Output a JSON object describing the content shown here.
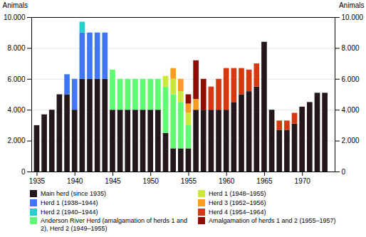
{
  "chart_data": {
    "type": "bar",
    "stacked": true,
    "x": [
      1935,
      1936,
      1937,
      1938,
      1939,
      1940,
      1941,
      1942,
      1943,
      1944,
      1945,
      1946,
      1947,
      1948,
      1949,
      1950,
      1951,
      1952,
      1953,
      1954,
      1955,
      1956,
      1957,
      1958,
      1959,
      1960,
      1961,
      1962,
      1963,
      1964,
      1965,
      1966,
      1967,
      1968,
      1969,
      1970,
      1971,
      1972,
      1973
    ],
    "xlim": [
      1934.3,
      1974.3
    ],
    "xticks": [
      1935,
      1940,
      1945,
      1950,
      1955,
      1960,
      1965,
      1970
    ],
    "ylim": [
      0,
      10000
    ],
    "yticks": [
      0,
      {
        "value": 2000,
        "label": "2.000"
      },
      {
        "value": 4000,
        "label": "4.000"
      },
      {
        "value": 6000,
        "label": "6.000"
      },
      {
        "value": 8000,
        "label": "8.000"
      },
      {
        "value": 10000,
        "label": "10.000"
      }
    ],
    "ylabel": "Animals",
    "y2label": "Animals",
    "grid": true,
    "legend": "bottom",
    "series": [
      {
        "name": "Main herd (since 1935)",
        "values": [
          3000,
          3700,
          4000,
          5000,
          5000,
          4000,
          6000,
          6000,
          6000,
          6000,
          4000,
          4000,
          4000,
          4000,
          4000,
          4000,
          4000,
          2500,
          1500,
          1500,
          1500,
          4000,
          4000,
          4000,
          4000,
          4000,
          4500,
          5000,
          5200,
          5500,
          8400,
          4000,
          2700,
          2700,
          3100,
          4200,
          4500,
          5100,
          5100
        ]
      },
      {
        "name": "Herd 1 (1938–1944)",
        "values": [
          0,
          0,
          0,
          0,
          1300,
          2000,
          3000,
          3000,
          3000,
          3000,
          0,
          0,
          0,
          0,
          0,
          0,
          0,
          0,
          0,
          0,
          0,
          0,
          0,
          0,
          0,
          0,
          0,
          0,
          0,
          0,
          0,
          0,
          0,
          0,
          0,
          0,
          0,
          0,
          0
        ]
      },
      {
        "name": "Herd 2 (1940–1944)",
        "values": [
          0,
          0,
          0,
          0,
          0,
          0,
          700,
          0,
          0,
          0,
          0,
          0,
          0,
          0,
          0,
          0,
          0,
          0,
          0,
          0,
          0,
          0,
          0,
          0,
          0,
          0,
          0,
          0,
          0,
          0,
          0,
          0,
          0,
          0,
          0,
          0,
          0,
          0,
          0
        ]
      },
      {
        "name": "Anderson River Herd (amalgamation of herds 1 and 2), Herd 2 (1949–1955)",
        "values": [
          0,
          0,
          0,
          0,
          0,
          0,
          0,
          0,
          0,
          0,
          2600,
          2000,
          2000,
          2000,
          2000,
          2000,
          2000,
          3000,
          3500,
          3000,
          1500,
          0,
          0,
          0,
          0,
          0,
          0,
          0,
          0,
          0,
          0,
          0,
          0,
          0,
          0,
          0,
          0,
          0,
          0
        ]
      },
      {
        "name": "Herd 1 (1948–1955)",
        "values": [
          0,
          0,
          0,
          0,
          0,
          0,
          0,
          0,
          0,
          0,
          0,
          0,
          0,
          0,
          0,
          0,
          0,
          700,
          1000,
          700,
          800,
          0,
          0,
          0,
          0,
          0,
          0,
          0,
          0,
          0,
          0,
          0,
          0,
          0,
          0,
          0,
          0,
          0,
          0
        ]
      },
      {
        "name": "Herd 3 (1952–1956)",
        "values": [
          0,
          0,
          0,
          0,
          0,
          0,
          0,
          0,
          0,
          0,
          0,
          0,
          0,
          0,
          0,
          0,
          0,
          0,
          700,
          800,
          600,
          700,
          0,
          0,
          0,
          0,
          0,
          0,
          0,
          0,
          0,
          0,
          0,
          0,
          0,
          0,
          0,
          0,
          0
        ]
      },
      {
        "name": "Herd 4 (1954–1964)",
        "values": [
          0,
          0,
          0,
          0,
          0,
          0,
          0,
          0,
          0,
          0,
          0,
          0,
          0,
          0,
          0,
          0,
          0,
          0,
          0,
          0,
          0,
          0,
          0,
          1500,
          2000,
          2700,
          2200,
          1700,
          1400,
          1500,
          0,
          0,
          600,
          600,
          700,
          0,
          0,
          0,
          0
        ]
      },
      {
        "name": "Amalgamation of herds 1 and 2 (1955–1957)",
        "values": [
          0,
          0,
          0,
          0,
          0,
          0,
          0,
          0,
          0,
          0,
          0,
          0,
          0,
          0,
          0,
          0,
          0,
          0,
          0,
          0,
          600,
          2500,
          2000,
          0,
          0,
          0,
          0,
          0,
          0,
          0,
          0,
          0,
          0,
          0,
          0,
          0,
          0,
          0,
          0
        ]
      }
    ]
  }
}
